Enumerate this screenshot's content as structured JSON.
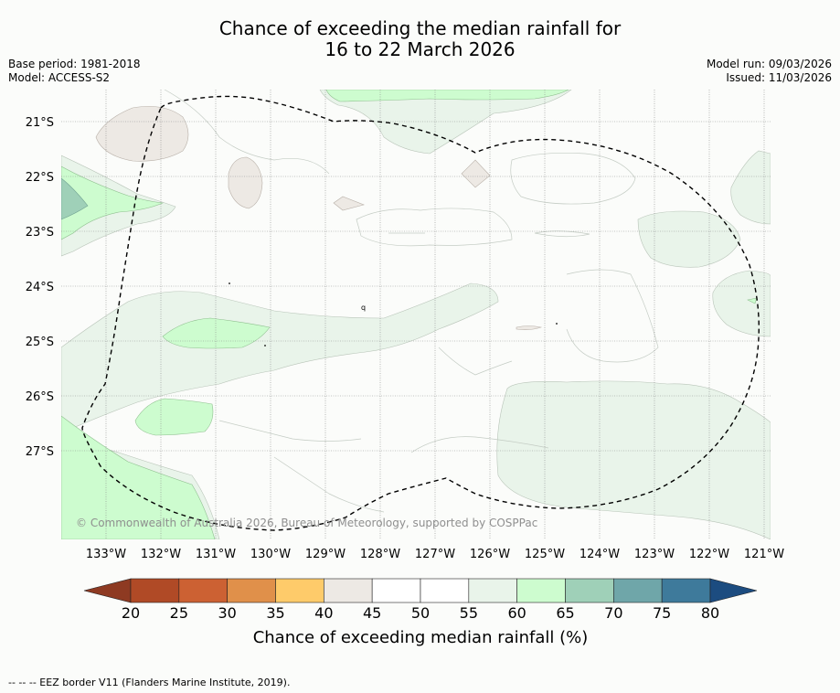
{
  "title": {
    "line1": "Chance of exceeding the median rainfall for",
    "line2": "16 to 22 March 2026"
  },
  "meta_left": {
    "base_period": "Base period: 1981-2018",
    "model": "Model: ACCESS-S2"
  },
  "meta_right": {
    "model_run": "Model run: 09/03/2026",
    "issued": "Issued: 11/03/2026"
  },
  "map": {
    "lat_labels": [
      "21°S",
      "22°S",
      "23°S",
      "24°S",
      "25°S",
      "26°S",
      "27°S"
    ],
    "lon_labels": [
      "133°W",
      "132°W",
      "131°W",
      "130°W",
      "129°W",
      "128°W",
      "127°W",
      "126°W",
      "125°W",
      "124°W",
      "123°W",
      "122°W",
      "121°W"
    ],
    "copyright": "© Commonwealth of Australia 2026, Bureau of Meteorology, supported by COSPPac",
    "small_label": "q"
  },
  "colorbar": {
    "ticks": [
      "20",
      "25",
      "30",
      "35",
      "40",
      "45",
      "50",
      "55",
      "60",
      "65",
      "70",
      "75",
      "80"
    ],
    "colors": [
      "#b04a26",
      "#cc6133",
      "#e0904a",
      "#fecb6a",
      "#ede9e4",
      "#ffffff",
      "#ffffff",
      "#e9f4ea",
      "#cdfccf",
      "#9fd0b8",
      "#6fa6a9",
      "#3e7a9b"
    ],
    "low_extend_color": "#8e3a22",
    "high_extend_color": "#1c4c80",
    "label": "Chance of exceeding median rainfall (%)"
  },
  "legend_footer": "--  --  -- EEZ border V11 (Flanders Marine Institute, 2019)."
}
